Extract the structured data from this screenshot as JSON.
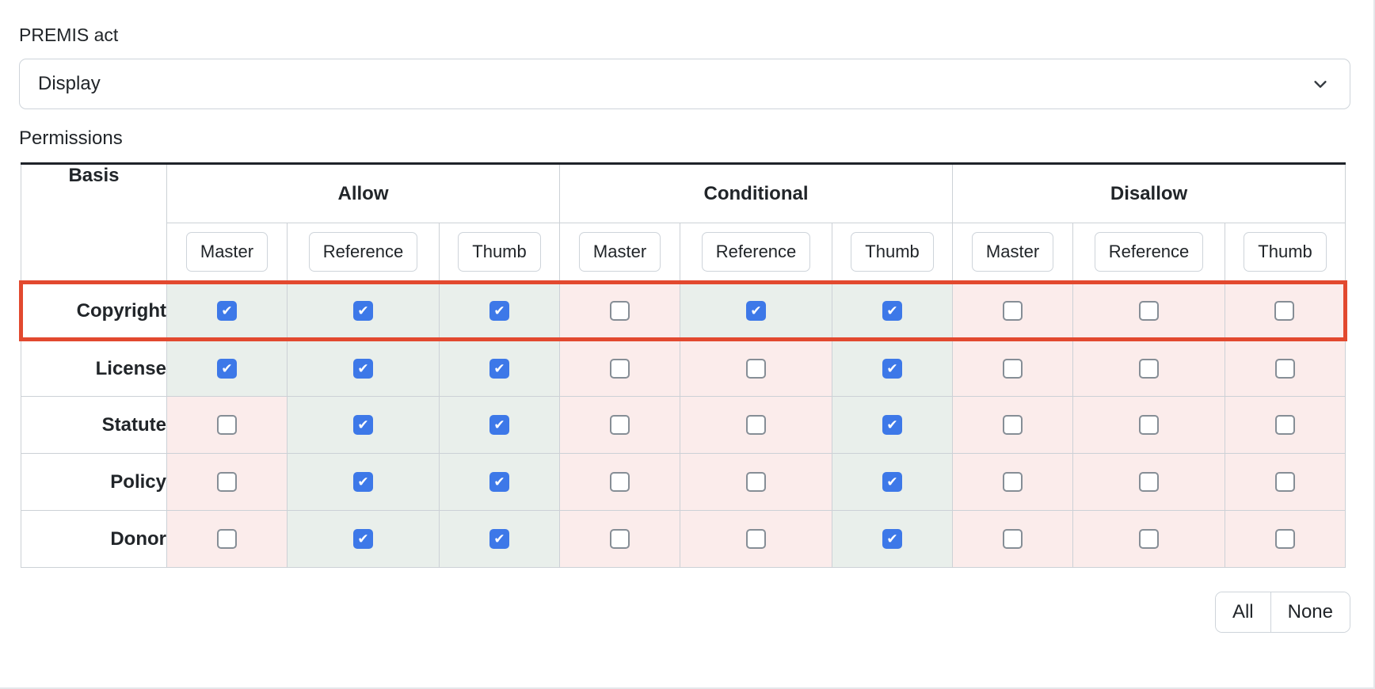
{
  "premis_act": {
    "label": "PREMIS act",
    "selected": "Display",
    "icon": "chevron-down"
  },
  "permissions": {
    "label": "Permissions",
    "table": {
      "basis_header": "Basis",
      "groups": [
        "Allow",
        "Conditional",
        "Disallow"
      ],
      "subcolumns": [
        "Master",
        "Reference",
        "Thumb"
      ],
      "rows": [
        {
          "basis": "Copyright",
          "selected": true,
          "checks": [
            true,
            true,
            true,
            false,
            true,
            true,
            false,
            false,
            false
          ]
        },
        {
          "basis": "License",
          "selected": false,
          "checks": [
            true,
            true,
            true,
            false,
            false,
            true,
            false,
            false,
            false
          ]
        },
        {
          "basis": "Statute",
          "selected": false,
          "checks": [
            false,
            true,
            true,
            false,
            false,
            true,
            false,
            false,
            false
          ]
        },
        {
          "basis": "Policy",
          "selected": false,
          "checks": [
            false,
            true,
            true,
            false,
            false,
            true,
            false,
            false,
            false
          ]
        },
        {
          "basis": "Donor",
          "selected": false,
          "checks": [
            false,
            true,
            true,
            false,
            false,
            true,
            false,
            false,
            false
          ]
        }
      ]
    },
    "actions": {
      "all": "All",
      "none": "None"
    }
  },
  "colors": {
    "checkbox_checked": "#3d78e8",
    "checked_cell_bg": "#e9efeb",
    "unchecked_cell_bg": "#fbeceb",
    "selected_row_border": "#e2492f",
    "table_top_border": "#1f2329",
    "grid_line": "#ccd1d6"
  }
}
